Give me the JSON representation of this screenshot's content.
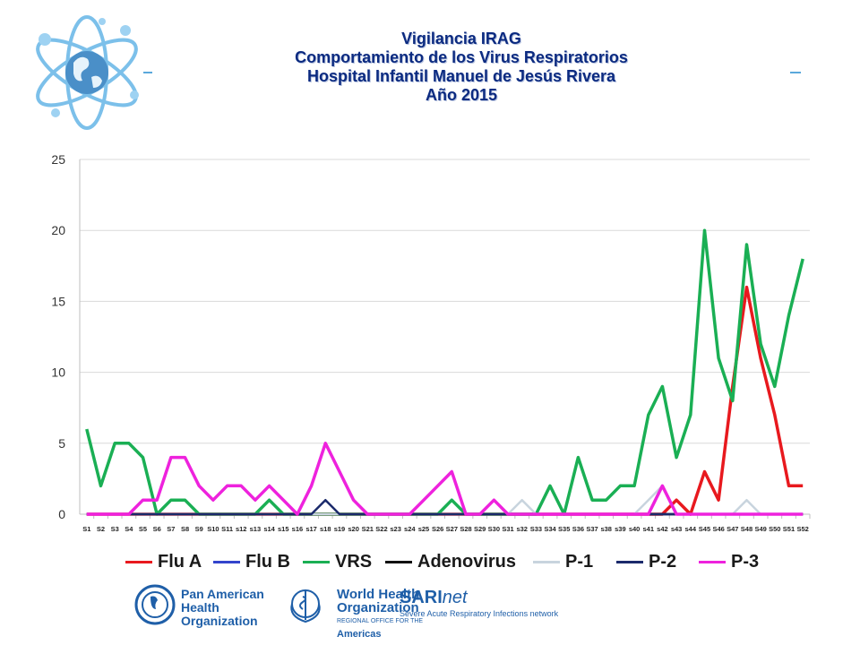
{
  "title": {
    "line1": "Vigilancia IRAG",
    "line2": "Comportamiento de los Virus Respiratorios",
    "line3": "Hospital Infantil Manuel de Jesús Rivera",
    "line4": "Año 2015"
  },
  "footer": {
    "paho": [
      "Pan American",
      "Health",
      "Organization"
    ],
    "who": [
      "World Health",
      "Organization"
    ],
    "who_region": "REGIONAL OFFICE FOR THE",
    "who_americas": "Americas",
    "sari_main": "SARI",
    "sari_suffix": "net",
    "sari_sub": "Severe Acute Respiratory Infections network"
  },
  "chart_data": {
    "type": "line",
    "title": "",
    "xlabel": "",
    "ylabel": "",
    "ylim": [
      0,
      25
    ],
    "yticks": [
      0,
      5,
      10,
      15,
      20,
      25
    ],
    "grid": true,
    "legend_position": "bottom",
    "categories": [
      "S1",
      "S2",
      "S3",
      "S4",
      "S5",
      "S6",
      "S7",
      "S8",
      "S9",
      "S10",
      "S11",
      "s12",
      "s13",
      "s14",
      "s15",
      "s16",
      "s17",
      "s18",
      "s19",
      "s20",
      "S21",
      "S22",
      "s23",
      "s24",
      "s25",
      "S26",
      "S27",
      "S28",
      "S29",
      "S30",
      "S31",
      "s32",
      "S33",
      "S34",
      "S35",
      "S36",
      "S37",
      "s38",
      "s39",
      "s40",
      "s41",
      "s42",
      "s43",
      "s44",
      "S45",
      "S46",
      "S47",
      "S48",
      "S49",
      "S50",
      "S51",
      "S52"
    ],
    "series": [
      {
        "name": "Flu A",
        "color": "#e8191e",
        "values": [
          0,
          0,
          0,
          0,
          0,
          0,
          0,
          0,
          0,
          0,
          0,
          0,
          0,
          0,
          0,
          0,
          0,
          0,
          0,
          0,
          0,
          0,
          0,
          0,
          0,
          0,
          0,
          0,
          0,
          0,
          0,
          0,
          0,
          0,
          0,
          0,
          0,
          0,
          0,
          0,
          0,
          0,
          1,
          0,
          3,
          1,
          9,
          16,
          11,
          7,
          2,
          2
        ]
      },
      {
        "name": "Flu B",
        "color": "#3344cc",
        "values": [
          0,
          0,
          0,
          0,
          0,
          0,
          0,
          0,
          0,
          0,
          0,
          0,
          0,
          0,
          0,
          0,
          0,
          0,
          0,
          0,
          0,
          0,
          0,
          0,
          0,
          0,
          0,
          0,
          0,
          0,
          0,
          0,
          0,
          0,
          0,
          0,
          0,
          0,
          0,
          0,
          0,
          0,
          0,
          0,
          0,
          0,
          0,
          0,
          0,
          0,
          0,
          0
        ]
      },
      {
        "name": "VRS",
        "color": "#1aaf54",
        "values": [
          6,
          2,
          5,
          5,
          4,
          0,
          1,
          1,
          0,
          0,
          0,
          0,
          0,
          1,
          0,
          0,
          0,
          0,
          0,
          0,
          0,
          0,
          0,
          0,
          0,
          0,
          1,
          0,
          0,
          0,
          0,
          0,
          0,
          2,
          0,
          4,
          1,
          1,
          2,
          2,
          7,
          9,
          4,
          7,
          20,
          11,
          8,
          19,
          12,
          9,
          14,
          18
        ]
      },
      {
        "name": "Adenovirus",
        "color": "#111111",
        "values": [
          0,
          0,
          0,
          0,
          0,
          0,
          0,
          0,
          0,
          0,
          0,
          0,
          0,
          0,
          0,
          0,
          0,
          0,
          0,
          0,
          0,
          0,
          0,
          0,
          0,
          0,
          0,
          0,
          0,
          0,
          0,
          0,
          0,
          0,
          0,
          0,
          0,
          0,
          0,
          0,
          0,
          0,
          0,
          0,
          0,
          0,
          0,
          0,
          0,
          0,
          0,
          0
        ]
      },
      {
        "name": "P-1",
        "color": "#c8d4de",
        "values": [
          0,
          0,
          0,
          0,
          0,
          0,
          0,
          0,
          0,
          0,
          0,
          0,
          0,
          0,
          0,
          0,
          0,
          0,
          0,
          0,
          0,
          0,
          0,
          0,
          0,
          0,
          0,
          0,
          0,
          0,
          0,
          1,
          0,
          0,
          0,
          0,
          0,
          0,
          0,
          0,
          1,
          2,
          0,
          0,
          0,
          0,
          0,
          1,
          0,
          0,
          0,
          0
        ]
      },
      {
        "name": "P-2",
        "color": "#1b2a6b",
        "values": [
          0,
          0,
          0,
          0,
          0,
          0,
          0,
          0,
          0,
          0,
          0,
          0,
          0,
          0,
          0,
          0,
          0,
          1,
          0,
          0,
          0,
          0,
          0,
          0,
          0,
          0,
          0,
          0,
          0,
          0,
          0,
          0,
          0,
          0,
          0,
          0,
          0,
          0,
          0,
          0,
          0,
          0,
          0,
          0,
          0,
          0,
          0,
          0,
          0,
          0,
          0,
          0
        ]
      },
      {
        "name": "P-3",
        "color": "#ee22dd",
        "values": [
          0,
          0,
          0,
          0,
          1,
          1,
          4,
          4,
          2,
          1,
          2,
          2,
          1,
          2,
          1,
          0,
          2,
          5,
          3,
          1,
          0,
          0,
          0,
          0,
          1,
          2,
          3,
          0,
          0,
          1,
          0,
          0,
          0,
          0,
          0,
          0,
          0,
          0,
          0,
          0,
          0,
          2,
          0,
          0,
          0,
          0,
          0,
          0,
          0,
          0,
          0,
          0
        ]
      }
    ]
  }
}
